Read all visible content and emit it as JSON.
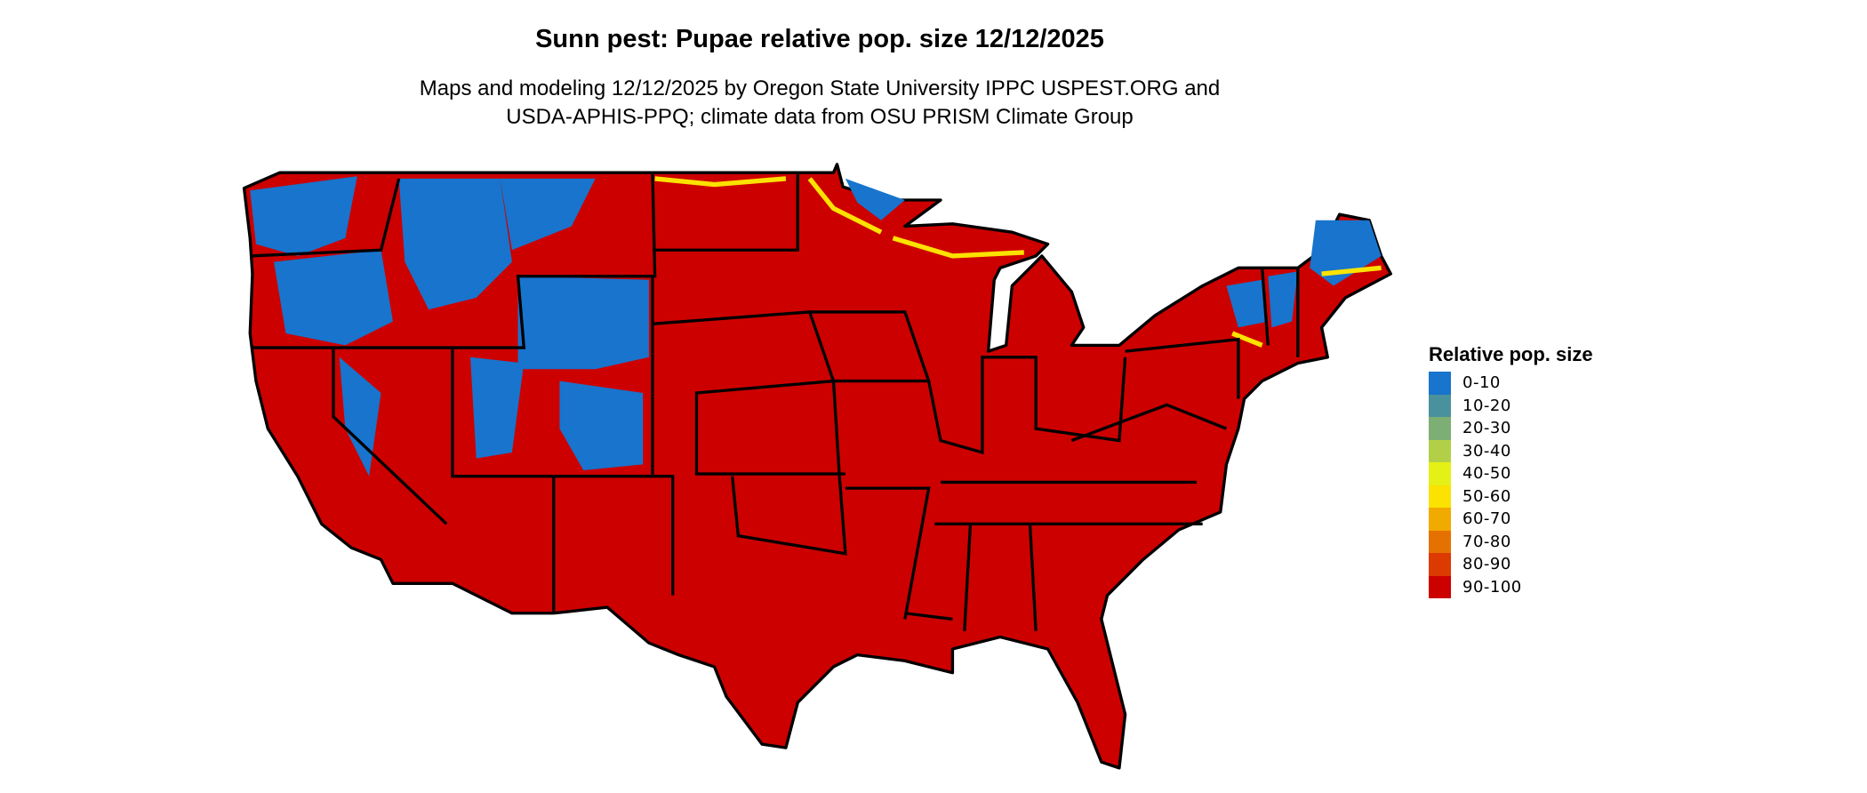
{
  "title": "Sunn pest: Pupae relative pop. size 12/12/2025",
  "subtitle_line1": "Maps and modeling 12/12/2025 by Oregon State University IPPC USPEST.ORG and",
  "subtitle_line2": "USDA-APHIS-PPQ; climate data from OSU PRISM Climate Group",
  "legend": {
    "title": "Relative pop. size",
    "items": [
      {
        "label": "0-10",
        "color": "#1874cd"
      },
      {
        "label": "10-20",
        "color": "#4a919e"
      },
      {
        "label": "20-30",
        "color": "#7daf75"
      },
      {
        "label": "30-40",
        "color": "#b2d047"
      },
      {
        "label": "40-50",
        "color": "#e5f016"
      },
      {
        "label": "50-60",
        "color": "#fbe200"
      },
      {
        "label": "60-70",
        "color": "#f1aa00"
      },
      {
        "label": "70-80",
        "color": "#e57200"
      },
      {
        "label": "80-90",
        "color": "#dc3a00"
      },
      {
        "label": "90-100",
        "color": "#cd0000"
      }
    ]
  }
}
